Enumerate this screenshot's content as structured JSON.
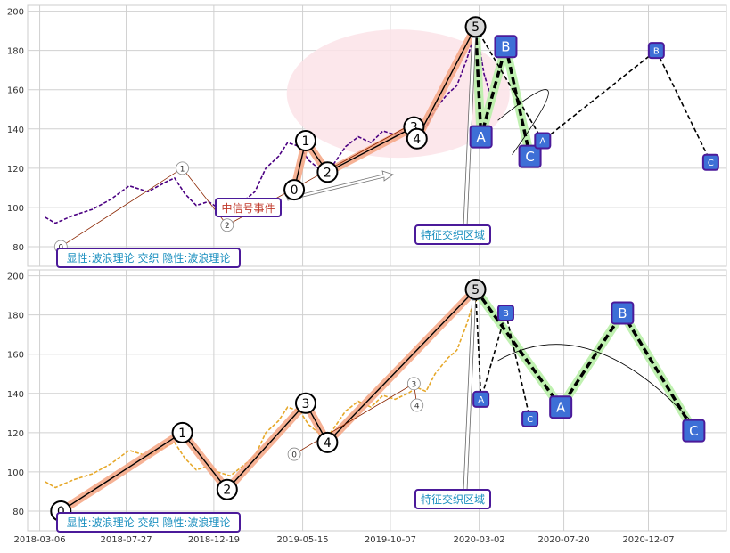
{
  "chart_data": [
    {
      "type": "line",
      "panel": "top",
      "x_ticks": [],
      "y_ticks": [
        80,
        100,
        120,
        140,
        160,
        180,
        200
      ],
      "ylim": [
        70,
        203
      ],
      "xlim": [
        "2018-02-14",
        "2021-04-15"
      ],
      "grid": true,
      "series": [
        {
          "color": "#4b0082",
          "style": "dashed",
          "values": [
            [
              "2018-03-15",
              95
            ],
            [
              "2018-04-01",
              92
            ],
            [
              "2018-05-01",
              96
            ],
            [
              "2018-06-01",
              99
            ],
            [
              "2018-07-01",
              104
            ],
            [
              "2018-08-01",
              111
            ],
            [
              "2018-09-01",
              108
            ],
            [
              "2018-10-01",
              113
            ],
            [
              "2018-10-15",
              115
            ],
            [
              "2018-11-01",
              107
            ],
            [
              "2018-11-20",
              101
            ],
            [
              "2018-12-10",
              103
            ],
            [
              "2018-12-25",
              100
            ],
            [
              "2019-01-15",
              98
            ],
            [
              "2019-02-05",
              103
            ],
            [
              "2019-02-25",
              108
            ],
            [
              "2019-03-15",
              120
            ],
            [
              "2019-04-05",
              126
            ],
            [
              "2019-04-20",
              133
            ],
            [
              "2019-05-10",
              131
            ],
            [
              "2019-05-25",
              124
            ],
            [
              "2019-06-10",
              120
            ],
            [
              "2019-06-20",
              116
            ],
            [
              "2019-07-05",
              122
            ],
            [
              "2019-07-25",
              131
            ],
            [
              "2019-08-15",
              136
            ],
            [
              "2019-09-05",
              133
            ],
            [
              "2019-09-25",
              139
            ],
            [
              "2019-10-15",
              137
            ],
            [
              "2019-11-05",
              140
            ],
            [
              "2019-11-20",
              143
            ],
            [
              "2019-12-05",
              141
            ],
            [
              "2019-12-20",
              150
            ],
            [
              "2020-01-10",
              158
            ],
            [
              "2020-01-25",
              162
            ],
            [
              "2020-02-10",
              175
            ],
            [
              "2020-02-20",
              185
            ],
            [
              "2020-02-28",
              188
            ],
            [
              "2020-03-10",
              168
            ],
            [
              "2020-03-20",
              158
            ]
          ]
        }
      ],
      "wave_labels_small": [
        {
          "text": "0",
          "x": "2018-04-10",
          "y": 80
        },
        {
          "text": "1",
          "x": "2018-10-28",
          "y": 120
        },
        {
          "text": "2",
          "x": "2019-01-10",
          "y": 91
        },
        {
          "text": "3",
          "x": "2019-11-15",
          "y": 143
        },
        {
          "text": "4",
          "x": "2019-11-20",
          "y": 134
        }
      ],
      "wave_labels_large": [
        {
          "text": "0",
          "x": "2019-05-01",
          "y": 109
        },
        {
          "text": "1",
          "x": "2019-05-20",
          "y": 134
        },
        {
          "text": "2",
          "x": "2019-06-25",
          "y": 118
        },
        {
          "text": "3",
          "x": "2019-11-15",
          "y": 141
        },
        {
          "text": "4",
          "x": "2019-11-20",
          "y": 135
        },
        {
          "text": "5",
          "x": "2020-02-25",
          "y": 192
        }
      ],
      "projection_labels": [
        {
          "text": "A",
          "x": "2020-03-05",
          "y": 136,
          "size": "large"
        },
        {
          "text": "B",
          "x": "2020-04-15",
          "y": 182,
          "size": "large"
        },
        {
          "text": "C",
          "x": "2020-05-25",
          "y": 126,
          "size": "large"
        },
        {
          "text": "A",
          "x": "2020-06-15",
          "y": 134,
          "size": "small"
        },
        {
          "text": "B",
          "x": "2020-12-20",
          "y": 180,
          "size": "small"
        },
        {
          "text": "C",
          "x": "2021-03-20",
          "y": 123,
          "size": "small"
        }
      ],
      "annotations": {
        "event_label": "中信号事件",
        "zone_label": "特征交织区域",
        "legend_text": "显性:波浪理论 交织 隐性:波浪理论"
      }
    },
    {
      "type": "line",
      "panel": "bottom",
      "x_ticks": [
        "2018-03-06",
        "2018-07-27",
        "2018-12-19",
        "2019-05-15",
        "2019-10-07",
        "2020-03-02",
        "2020-07-20",
        "2020-12-07"
      ],
      "y_ticks": [
        80,
        100,
        120,
        140,
        160,
        180,
        200
      ],
      "ylim": [
        70,
        203
      ],
      "xlim": [
        "2018-02-14",
        "2021-04-15"
      ],
      "grid": true,
      "series": [
        {
          "color": "#e6a82a",
          "style": "dashed",
          "values": [
            [
              "2018-03-15",
              95
            ],
            [
              "2018-04-01",
              92
            ],
            [
              "2018-05-01",
              96
            ],
            [
              "2018-06-01",
              99
            ],
            [
              "2018-07-01",
              104
            ],
            [
              "2018-08-01",
              111
            ],
            [
              "2018-09-01",
              108
            ],
            [
              "2018-10-01",
              113
            ],
            [
              "2018-10-15",
              115
            ],
            [
              "2018-11-01",
              107
            ],
            [
              "2018-11-20",
              101
            ],
            [
              "2018-12-10",
              103
            ],
            [
              "2018-12-25",
              100
            ],
            [
              "2019-01-15",
              98
            ],
            [
              "2019-02-05",
              103
            ],
            [
              "2019-02-25",
              108
            ],
            [
              "2019-03-15",
              120
            ],
            [
              "2019-04-05",
              126
            ],
            [
              "2019-04-20",
              133
            ],
            [
              "2019-05-10",
              131
            ],
            [
              "2019-05-25",
              124
            ],
            [
              "2019-06-10",
              120
            ],
            [
              "2019-06-20",
              116
            ],
            [
              "2019-07-05",
              122
            ],
            [
              "2019-07-25",
              131
            ],
            [
              "2019-08-15",
              136
            ],
            [
              "2019-09-05",
              133
            ],
            [
              "2019-09-25",
              139
            ],
            [
              "2019-10-15",
              137
            ],
            [
              "2019-11-05",
              140
            ],
            [
              "2019-11-20",
              143
            ],
            [
              "2019-12-05",
              141
            ],
            [
              "2019-12-20",
              150
            ],
            [
              "2020-01-10",
              158
            ],
            [
              "2020-01-25",
              162
            ],
            [
              "2020-02-10",
              175
            ],
            [
              "2020-02-20",
              185
            ],
            [
              "2020-02-28",
              188
            ]
          ]
        }
      ],
      "wave_labels_small": [
        {
          "text": "0",
          "x": "2019-05-01",
          "y": 109
        },
        {
          "text": "3",
          "x": "2019-11-15",
          "y": 145
        },
        {
          "text": "4",
          "x": "2019-11-20",
          "y": 134
        }
      ],
      "wave_labels_large": [
        {
          "text": "0",
          "x": "2018-04-10",
          "y": 80
        },
        {
          "text": "1",
          "x": "2018-10-28",
          "y": 120
        },
        {
          "text": "2",
          "x": "2019-01-10",
          "y": 91
        },
        {
          "text": "3",
          "x": "2019-05-20",
          "y": 135
        },
        {
          "text": "4",
          "x": "2019-06-25",
          "y": 115
        },
        {
          "text": "5",
          "x": "2020-02-25",
          "y": 193
        }
      ],
      "projection_labels": [
        {
          "text": "A",
          "x": "2020-03-05",
          "y": 137,
          "size": "small"
        },
        {
          "text": "B",
          "x": "2020-04-15",
          "y": 181,
          "size": "small"
        },
        {
          "text": "C",
          "x": "2020-05-25",
          "y": 127,
          "size": "small"
        },
        {
          "text": "A",
          "x": "2020-07-15",
          "y": 133,
          "size": "large"
        },
        {
          "text": "B",
          "x": "2020-10-25",
          "y": 181,
          "size": "large"
        },
        {
          "text": "C",
          "x": "2021-02-20",
          "y": 121,
          "size": "large"
        }
      ],
      "annotations": {
        "zone_label": "特征交织区域",
        "legend_text": "显性:波浪理论 交织 隐性:波浪理论"
      }
    }
  ],
  "colors": {
    "grid": "#d0d0d0",
    "zone_ellipse": "#fbe3e8",
    "wave_main": "#000000",
    "wave_glow": "#f4a582",
    "proj_glow": "#b9f0a8",
    "proj_box": "#3d6fd6",
    "proj_border": "#4b1a9a",
    "annotation_text": "#1a8fbf",
    "event_text": "#c0392b"
  }
}
